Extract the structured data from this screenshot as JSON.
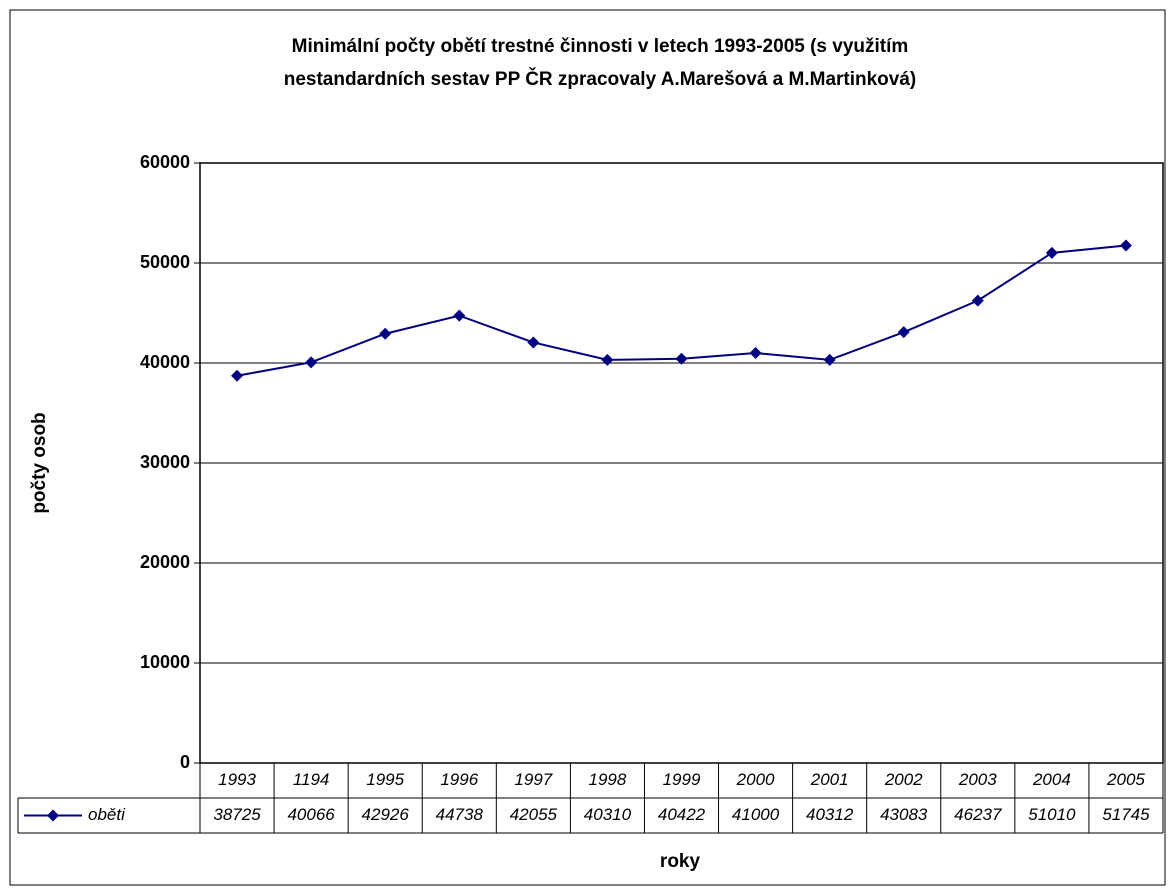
{
  "chart_data": {
    "type": "line",
    "title": [
      "Minimální počty obětí trestné činnosti v letech 1993-2005 (s využitím",
      "nestandardních sestav PP ČR zpracovaly A.Marešová a M.Martinková)"
    ],
    "x_label": "roky",
    "y_label": "počty osob",
    "categories": [
      "1993",
      "1194",
      "1995",
      "1996",
      "1997",
      "1998",
      "1999",
      "2000",
      "2001",
      "2002",
      "2003",
      "2004",
      "2005"
    ],
    "series": [
      {
        "name": "oběti",
        "color": "#000080",
        "values": [
          38725,
          40066,
          42926,
          44738,
          42055,
          40310,
          40422,
          41000,
          40312,
          43083,
          46237,
          51010,
          51745
        ]
      }
    ],
    "ylim": [
      0,
      60000
    ],
    "yticks": [
      0,
      10000,
      20000,
      30000,
      40000,
      50000,
      60000
    ],
    "grid": true
  }
}
